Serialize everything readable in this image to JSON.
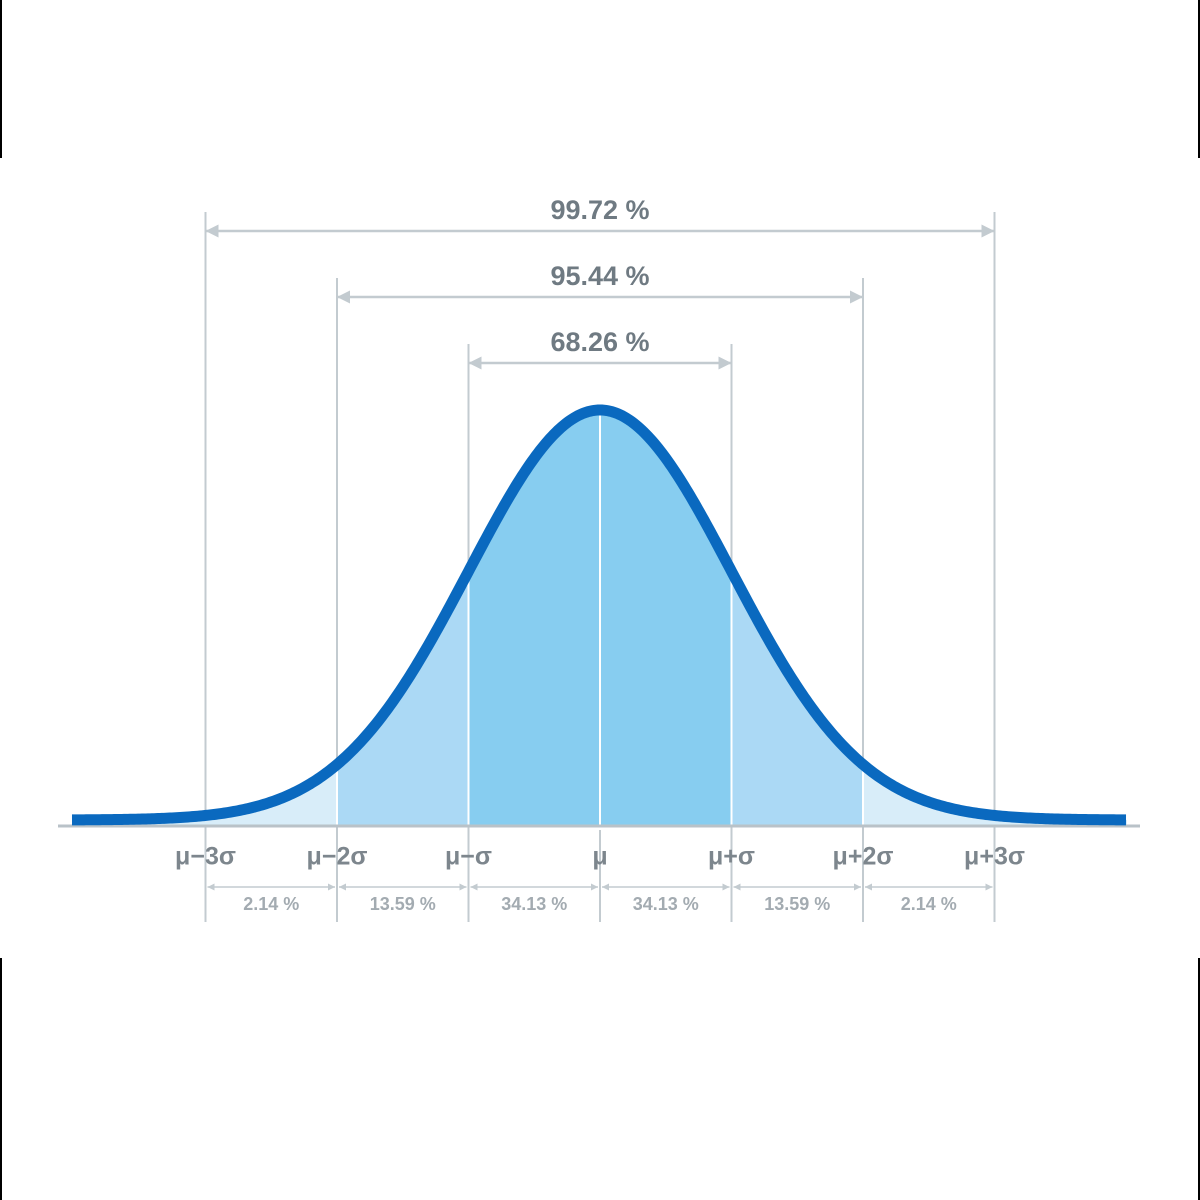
{
  "brackets": [
    {
      "label": "99.72 %"
    },
    {
      "label": "95.44 %"
    },
    {
      "label": "68.26 %"
    }
  ],
  "axis_labels": [
    "μ−3σ",
    "μ−2σ",
    "μ−σ",
    "μ",
    "μ+σ",
    "μ+2σ",
    "μ+3σ"
  ],
  "segments": [
    "2.14 %",
    "13.59 %",
    "34.13 %",
    "34.13 %",
    "13.59 %",
    "2.14 %"
  ]
}
